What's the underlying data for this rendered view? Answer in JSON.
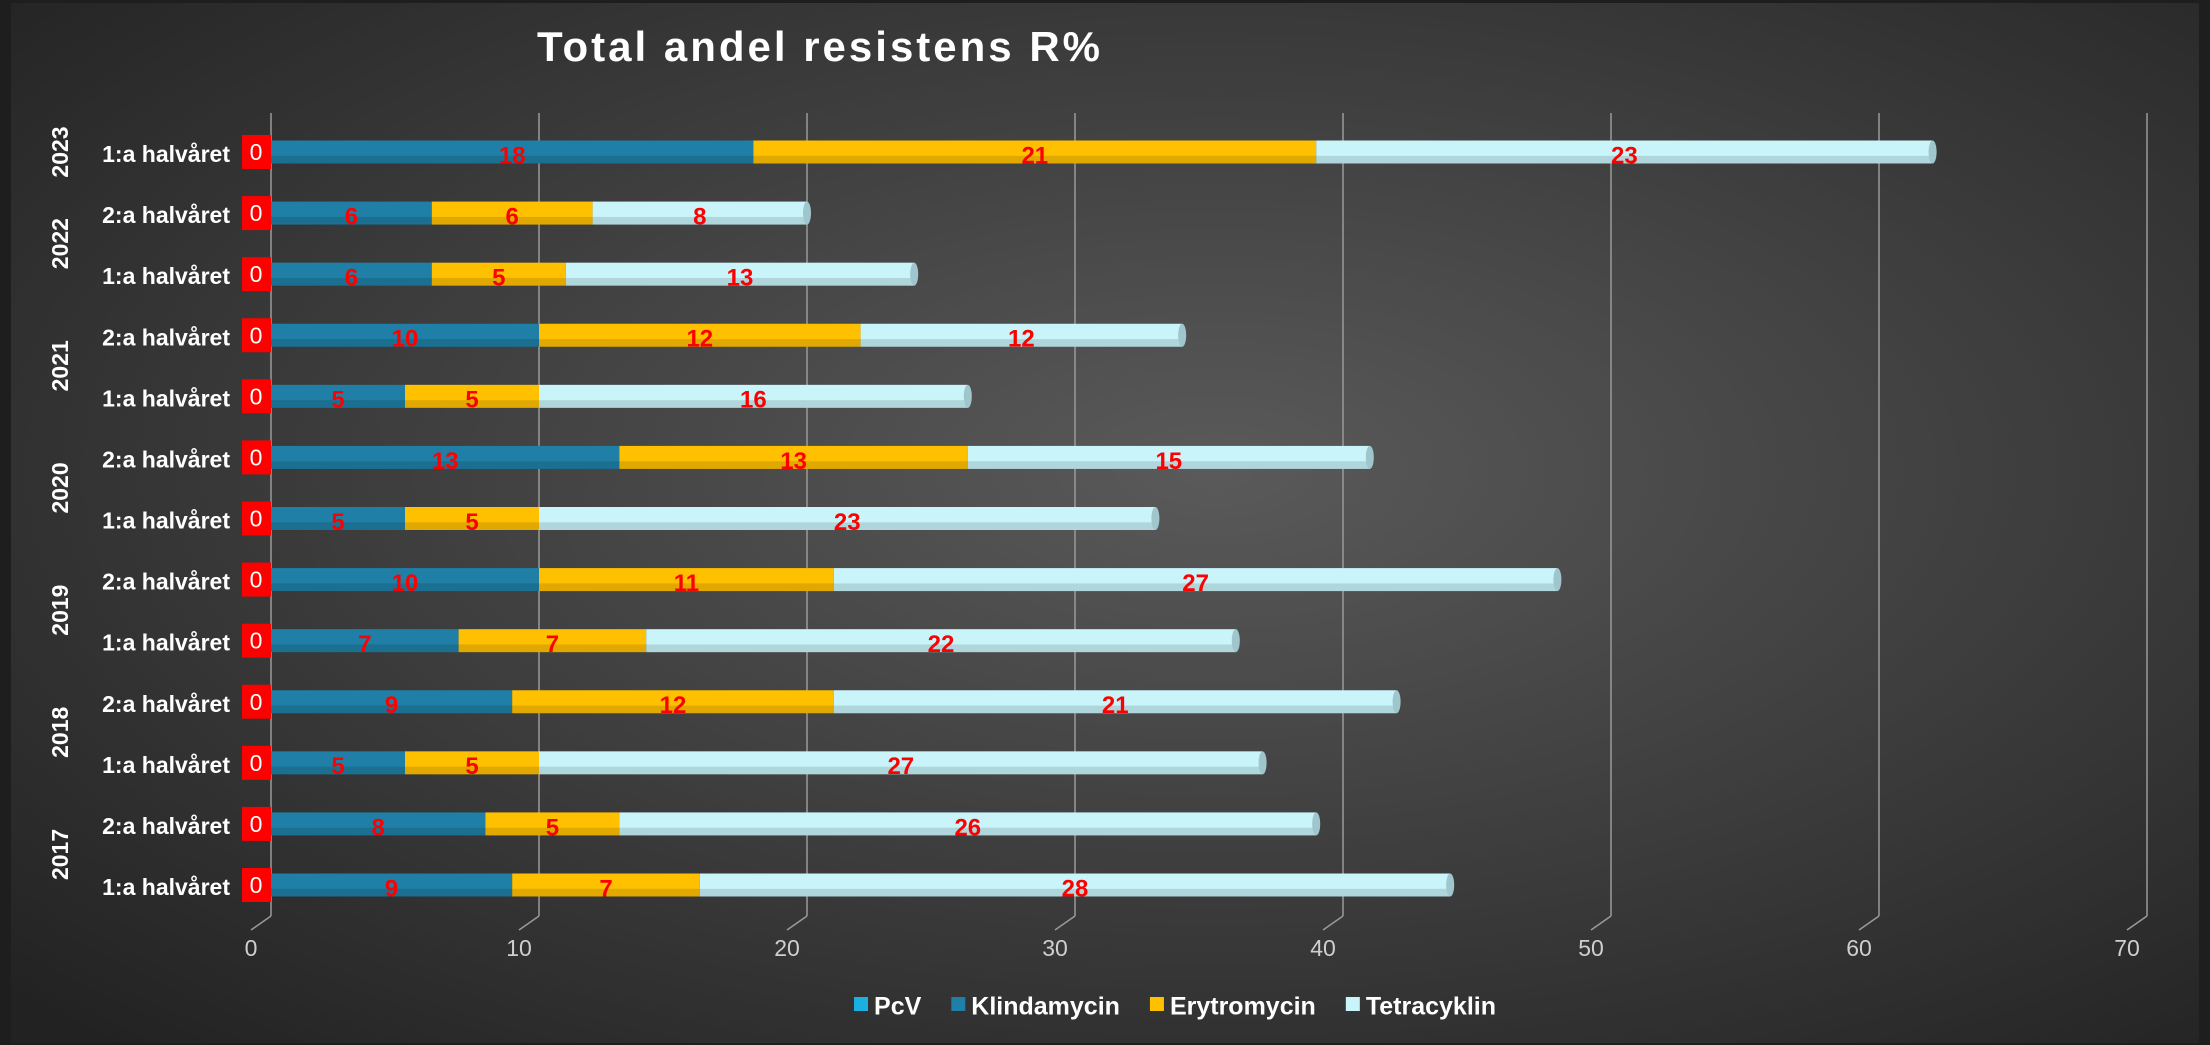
{
  "chart_data": {
    "type": "stacked_barh",
    "title": "Total andel resistens R%",
    "categories": [
      "1:a halvåret",
      "2:a halvåret",
      "1:a halvåret",
      "2:a halvåret",
      "1:a halvåret",
      "2:a halvåret",
      "1:a halvåret",
      "2:a halvåret",
      "1:a halvåret",
      "2:a halvåret",
      "1:a halvåret",
      "2:a halvåret",
      "1:a halvåret"
    ],
    "category_groups": [
      {
        "label": "2017",
        "span": 2
      },
      {
        "label": "2018",
        "span": 2
      },
      {
        "label": "2019",
        "span": 2
      },
      {
        "label": "2020",
        "span": 2
      },
      {
        "label": "2021",
        "span": 2
      },
      {
        "label": "2022",
        "span": 2
      },
      {
        "label": "2023",
        "span": 1
      }
    ],
    "series": [
      {
        "name": "PcV",
        "color": "#1ab0e0",
        "values": [
          0,
          0,
          0,
          0,
          0,
          0,
          0,
          0,
          0,
          0,
          0,
          0,
          0
        ]
      },
      {
        "name": "Klindamycin",
        "color": "#1f7fa6",
        "values": [
          9,
          8,
          5,
          9,
          7,
          10,
          5,
          13,
          5,
          10,
          6,
          6,
          18
        ]
      },
      {
        "name": "Erytromycin",
        "color": "#ffc000",
        "values": [
          7,
          5,
          5,
          12,
          7,
          11,
          5,
          13,
          5,
          12,
          5,
          6,
          21
        ]
      },
      {
        "name": "Tetracyklin",
        "color": "#c8f4fa",
        "values": [
          28,
          26,
          27,
          21,
          22,
          27,
          23,
          15,
          16,
          12,
          13,
          8,
          23
        ]
      }
    ],
    "xlim": [
      0,
      70
    ],
    "xticks": [
      0,
      10,
      20,
      30,
      40,
      50,
      60,
      70
    ],
    "grid": true,
    "legend": "bottom"
  }
}
